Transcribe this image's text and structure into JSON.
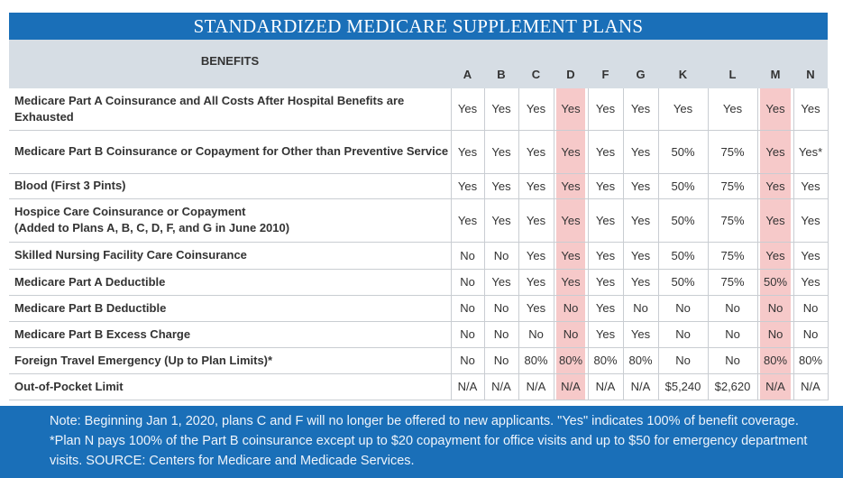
{
  "title": "STANDARDIZED MEDICARE SUPPLEMENT PLANS",
  "benefits_header": "BENEFITS",
  "plans": [
    "A",
    "B",
    "C",
    "D",
    "F",
    "G",
    "K",
    "L",
    "M",
    "N"
  ],
  "highlighted_plans": [
    "D",
    "M"
  ],
  "colors": {
    "header_blue": "#1a6fb8",
    "highlight_pink": "#f6c9c9",
    "header_gray": "#d6dde4"
  },
  "rows": [
    {
      "benefit": "Medicare Part A Coinsurance and All Costs After Hospital Benefits are Exhausted",
      "values": [
        "Yes",
        "Yes",
        "Yes",
        "Yes",
        "Yes",
        "Yes",
        "Yes",
        "Yes",
        "Yes",
        "Yes"
      ]
    },
    {
      "benefit": "Medicare Part B Coinsurance or Copayment for Other than Preventive Service",
      "values": [
        "Yes",
        "Yes",
        "Yes",
        "Yes",
        "Yes",
        "Yes",
        "50%",
        "75%",
        "Yes",
        "Yes*"
      ]
    },
    {
      "benefit": "Blood (First 3 Pints)",
      "values": [
        "Yes",
        "Yes",
        "Yes",
        "Yes",
        "Yes",
        "Yes",
        "50%",
        "75%",
        "Yes",
        "Yes"
      ]
    },
    {
      "benefit": "Hospice Care Coinsurance or Copayment",
      "benefit_line2": "(Added to Plans A, B, C, D, F, and G in June 2010)",
      "values": [
        "Yes",
        "Yes",
        "Yes",
        "Yes",
        "Yes",
        "Yes",
        "50%",
        "75%",
        "Yes",
        "Yes"
      ]
    },
    {
      "benefit": "Skilled Nursing Facility Care Coinsurance",
      "values": [
        "No",
        "No",
        "Yes",
        "Yes",
        "Yes",
        "Yes",
        "50%",
        "75%",
        "Yes",
        "Yes"
      ]
    },
    {
      "benefit": "Medicare Part A Deductible",
      "values": [
        "No",
        "Yes",
        "Yes",
        "Yes",
        "Yes",
        "Yes",
        "50%",
        "75%",
        "50%",
        "Yes"
      ]
    },
    {
      "benefit": "Medicare Part B Deductible",
      "values": [
        "No",
        "No",
        "Yes",
        "No",
        "Yes",
        "No",
        "No",
        "No",
        "No",
        "No"
      ]
    },
    {
      "benefit": "Medicare Part B Excess Charge",
      "values": [
        "No",
        "No",
        "No",
        "No",
        "Yes",
        "Yes",
        "No",
        "No",
        "No",
        "No"
      ]
    },
    {
      "benefit": "Foreign Travel Emergency (Up to Plan Limits)*",
      "values": [
        "No",
        "No",
        "80%",
        "80%",
        "80%",
        "80%",
        "No",
        "No",
        "80%",
        "80%"
      ]
    },
    {
      "benefit": "Out-of-Pocket Limit",
      "values": [
        "N/A",
        "N/A",
        "N/A",
        "N/A",
        "N/A",
        "N/A",
        "$5,240",
        "$2,620",
        "N/A",
        "N/A"
      ]
    }
  ],
  "footnote": "Note: Beginning Jan 1, 2020, plans C and F will no longer be offered to new applicants. \"Yes\" indicates 100% of benefit coverage. *Plan N pays 100% of the Part B coinsurance except up to $20 copayment for office visits and up to $50 for emergency department visits. SOURCE: Centers for Medicare and Medicade Services."
}
